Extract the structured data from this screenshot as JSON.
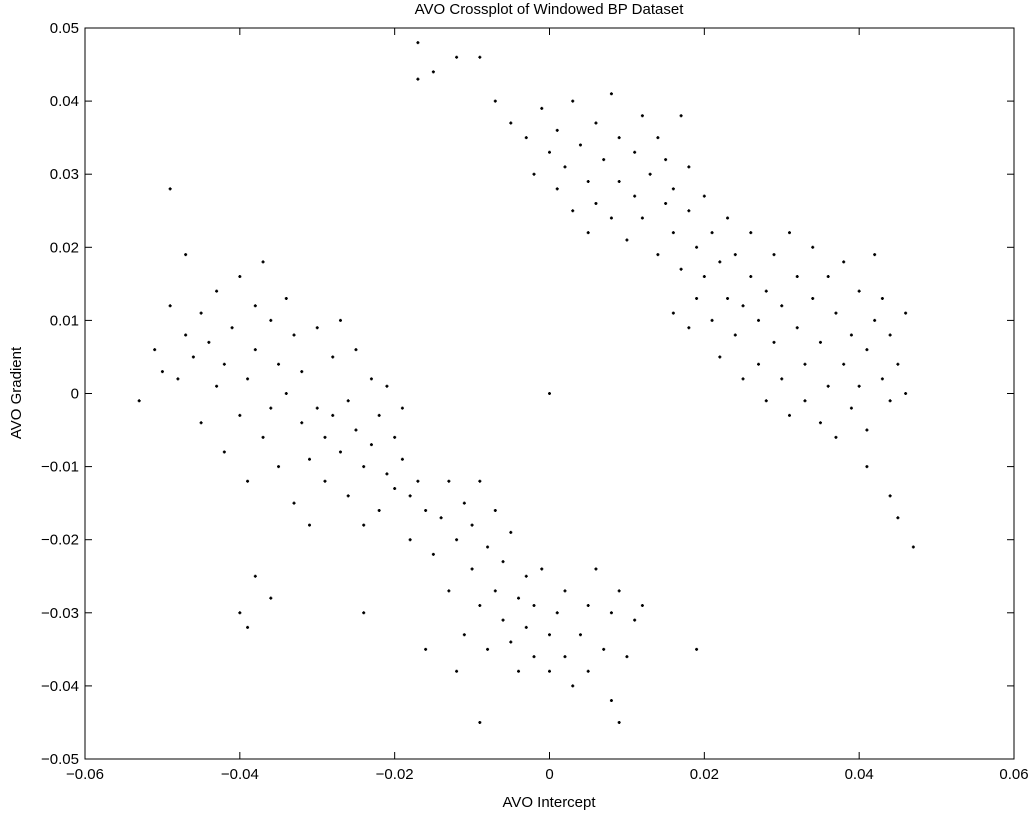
{
  "chart_data": {
    "type": "scatter",
    "title": "AVO Crossplot of Windowed BP Dataset",
    "xlabel": "AVO Intercept",
    "ylabel": "AVO Gradient",
    "xlim": [
      -0.06,
      0.06
    ],
    "ylim": [
      -0.05,
      0.05
    ],
    "xticks": [
      -0.06,
      -0.04,
      -0.02,
      0,
      0.02,
      0.04,
      0.06
    ],
    "xtick_labels": [
      "−0.06",
      "−0.04",
      "−0.02",
      "0",
      "0.02",
      "0.04",
      "0.06"
    ],
    "yticks": [
      0.05,
      0.04,
      0.03,
      0.02,
      0.01,
      0,
      -0.01,
      -0.02,
      -0.03,
      -0.04,
      -0.05
    ],
    "ytick_labels": [
      "0.05",
      "0.04",
      "0.03",
      "0.02",
      "0.01",
      "0",
      "−0.01",
      "−0.02",
      "−0.03",
      "−0.04",
      "−0.05"
    ],
    "grid": false,
    "marker_color": "#000000",
    "points": [
      [
        -0.053,
        -0.001
      ],
      [
        -0.051,
        0.006
      ],
      [
        -0.05,
        0.003
      ],
      [
        -0.049,
        0.012
      ],
      [
        -0.048,
        0.002
      ],
      [
        -0.047,
        0.008
      ],
      [
        -0.046,
        0.005
      ],
      [
        -0.045,
        0.011
      ],
      [
        -0.045,
        -0.004
      ],
      [
        -0.044,
        0.007
      ],
      [
        -0.043,
        0.001
      ],
      [
        -0.043,
        0.014
      ],
      [
        -0.042,
        -0.008
      ],
      [
        -0.042,
        0.004
      ],
      [
        -0.041,
        0.009
      ],
      [
        -0.04,
        -0.003
      ],
      [
        -0.04,
        0.016
      ],
      [
        -0.039,
        0.002
      ],
      [
        -0.039,
        -0.012
      ],
      [
        -0.038,
        0.012
      ],
      [
        -0.038,
        0.006
      ],
      [
        -0.037,
        -0.006
      ],
      [
        -0.037,
        0.018
      ],
      [
        -0.036,
        0.01
      ],
      [
        -0.036,
        -0.002
      ],
      [
        -0.035,
        0.004
      ],
      [
        -0.035,
        -0.01
      ],
      [
        -0.034,
        0.013
      ],
      [
        -0.034,
        0.0
      ],
      [
        -0.033,
        -0.015
      ],
      [
        -0.033,
        0.008
      ],
      [
        -0.032,
        -0.004
      ],
      [
        -0.032,
        0.003
      ],
      [
        -0.031,
        -0.009
      ],
      [
        -0.031,
        -0.018
      ],
      [
        -0.03,
        0.009
      ],
      [
        -0.03,
        -0.002
      ],
      [
        -0.029,
        -0.006
      ],
      [
        -0.029,
        -0.012
      ],
      [
        -0.028,
        0.005
      ],
      [
        -0.028,
        -0.003
      ],
      [
        -0.027,
        -0.008
      ],
      [
        -0.027,
        0.01
      ],
      [
        -0.026,
        -0.014
      ],
      [
        -0.026,
        -0.001
      ],
      [
        -0.025,
        -0.005
      ],
      [
        -0.025,
        0.006
      ],
      [
        -0.024,
        -0.01
      ],
      [
        -0.024,
        -0.018
      ],
      [
        -0.023,
        0.002
      ],
      [
        -0.023,
        -0.007
      ],
      [
        -0.022,
        -0.003
      ],
      [
        -0.022,
        -0.016
      ],
      [
        -0.021,
        -0.011
      ],
      [
        -0.021,
        0.001
      ],
      [
        -0.02,
        -0.006
      ],
      [
        -0.02,
        -0.013
      ],
      [
        -0.019,
        -0.002
      ],
      [
        -0.019,
        -0.009
      ],
      [
        -0.018,
        -0.014
      ],
      [
        -0.018,
        -0.02
      ],
      [
        -0.017,
        -0.012
      ],
      [
        -0.016,
        -0.016
      ],
      [
        -0.015,
        -0.022
      ],
      [
        -0.014,
        -0.017
      ],
      [
        -0.013,
        -0.012
      ],
      [
        -0.013,
        -0.027
      ],
      [
        -0.012,
        -0.02
      ],
      [
        -0.011,
        -0.015
      ],
      [
        -0.011,
        -0.033
      ],
      [
        -0.01,
        -0.024
      ],
      [
        -0.01,
        -0.018
      ],
      [
        -0.009,
        -0.029
      ],
      [
        -0.009,
        -0.012
      ],
      [
        -0.008,
        -0.021
      ],
      [
        -0.008,
        -0.035
      ],
      [
        -0.007,
        -0.027
      ],
      [
        -0.007,
        -0.016
      ],
      [
        -0.006,
        -0.031
      ],
      [
        -0.006,
        -0.023
      ],
      [
        -0.005,
        -0.019
      ],
      [
        -0.005,
        -0.034
      ],
      [
        -0.004,
        -0.028
      ],
      [
        -0.004,
        -0.038
      ],
      [
        -0.003,
        -0.025
      ],
      [
        -0.003,
        -0.032
      ],
      [
        -0.002,
        -0.036
      ],
      [
        -0.002,
        -0.029
      ],
      [
        -0.001,
        -0.024
      ],
      [
        0.0,
        -0.033
      ],
      [
        0.0,
        -0.038
      ],
      [
        0.001,
        -0.03
      ],
      [
        0.002,
        -0.036
      ],
      [
        0.002,
        -0.027
      ],
      [
        0.003,
        -0.04
      ],
      [
        0.004,
        -0.033
      ],
      [
        0.005,
        -0.029
      ],
      [
        0.005,
        -0.038
      ],
      [
        0.006,
        -0.024
      ],
      [
        0.007,
        -0.035
      ],
      [
        0.008,
        -0.03
      ],
      [
        0.008,
        -0.042
      ],
      [
        0.009,
        -0.027
      ],
      [
        0.01,
        -0.036
      ],
      [
        0.011,
        -0.031
      ],
      [
        0.012,
        -0.029
      ],
      [
        0.009,
        -0.045
      ],
      [
        -0.009,
        -0.045
      ],
      [
        -0.012,
        -0.038
      ],
      [
        -0.016,
        -0.035
      ],
      [
        -0.038,
        -0.025
      ],
      [
        -0.04,
        -0.03
      ],
      [
        -0.036,
        -0.028
      ],
      [
        -0.039,
        -0.032
      ],
      [
        0.019,
        -0.035
      ],
      [
        -0.024,
        -0.03
      ],
      [
        -0.017,
        0.048
      ],
      [
        -0.015,
        0.044
      ],
      [
        -0.012,
        0.046
      ],
      [
        -0.009,
        0.046
      ],
      [
        -0.017,
        0.043
      ],
      [
        -0.007,
        0.04
      ],
      [
        -0.005,
        0.037
      ],
      [
        -0.003,
        0.035
      ],
      [
        -0.002,
        0.03
      ],
      [
        -0.001,
        0.039
      ],
      [
        0.0,
        0.033
      ],
      [
        0.001,
        0.028
      ],
      [
        0.001,
        0.036
      ],
      [
        0.002,
        0.031
      ],
      [
        0.003,
        0.025
      ],
      [
        0.003,
        0.04
      ],
      [
        0.004,
        0.034
      ],
      [
        0.005,
        0.029
      ],
      [
        0.005,
        0.022
      ],
      [
        0.006,
        0.037
      ],
      [
        0.006,
        0.026
      ],
      [
        0.007,
        0.032
      ],
      [
        0.008,
        0.024
      ],
      [
        0.008,
        0.041
      ],
      [
        0.009,
        0.029
      ],
      [
        0.009,
        0.035
      ],
      [
        0.01,
        0.021
      ],
      [
        0.011,
        0.027
      ],
      [
        0.011,
        0.033
      ],
      [
        0.012,
        0.038
      ],
      [
        0.012,
        0.024
      ],
      [
        0.013,
        0.03
      ],
      [
        0.014,
        0.019
      ],
      [
        0.014,
        0.035
      ],
      [
        0.015,
        0.026
      ],
      [
        0.015,
        0.032
      ],
      [
        0.016,
        0.022
      ],
      [
        0.016,
        0.028
      ],
      [
        0.017,
        0.038
      ],
      [
        0.017,
        0.017
      ],
      [
        0.018,
        0.025
      ],
      [
        0.018,
        0.031
      ],
      [
        0.019,
        0.02
      ],
      [
        0.019,
        0.013
      ],
      [
        0.02,
        0.027
      ],
      [
        0.02,
        0.016
      ],
      [
        0.021,
        0.01
      ],
      [
        0.021,
        0.022
      ],
      [
        0.022,
        0.018
      ],
      [
        0.022,
        0.005
      ],
      [
        0.023,
        0.013
      ],
      [
        0.023,
        0.024
      ],
      [
        0.024,
        0.008
      ],
      [
        0.024,
        0.019
      ],
      [
        0.025,
        0.012
      ],
      [
        0.025,
        0.002
      ],
      [
        0.026,
        0.016
      ],
      [
        0.026,
        0.022
      ],
      [
        0.027,
        0.01
      ],
      [
        0.027,
        0.004
      ],
      [
        0.028,
        0.014
      ],
      [
        0.028,
        -0.001
      ],
      [
        0.029,
        0.019
      ],
      [
        0.029,
        0.007
      ],
      [
        0.03,
        0.012
      ],
      [
        0.03,
        0.002
      ],
      [
        0.031,
        0.022
      ],
      [
        0.031,
        -0.003
      ],
      [
        0.032,
        0.009
      ],
      [
        0.032,
        0.016
      ],
      [
        0.033,
        0.004
      ],
      [
        0.033,
        -0.001
      ],
      [
        0.034,
        0.013
      ],
      [
        0.034,
        0.02
      ],
      [
        0.035,
        0.007
      ],
      [
        0.035,
        -0.004
      ],
      [
        0.036,
        0.016
      ],
      [
        0.036,
        0.001
      ],
      [
        0.037,
        0.011
      ],
      [
        0.037,
        -0.006
      ],
      [
        0.038,
        0.004
      ],
      [
        0.038,
        0.018
      ],
      [
        0.039,
        0.008
      ],
      [
        0.039,
        -0.002
      ],
      [
        0.04,
        0.014
      ],
      [
        0.04,
        0.001
      ],
      [
        0.041,
        0.006
      ],
      [
        0.041,
        -0.005
      ],
      [
        0.042,
        0.019
      ],
      [
        0.042,
        0.01
      ],
      [
        0.043,
        0.002
      ],
      [
        0.043,
        0.013
      ],
      [
        0.044,
        0.008
      ],
      [
        0.044,
        -0.001
      ],
      [
        0.045,
        0.004
      ],
      [
        0.046,
        0.011
      ],
      [
        0.046,
        0.0
      ],
      [
        0.047,
        -0.021
      ],
      [
        0.045,
        -0.017
      ],
      [
        0.041,
        -0.01
      ],
      [
        0.044,
        -0.014
      ],
      [
        0.018,
        0.009
      ],
      [
        0.016,
        0.011
      ],
      [
        -0.049,
        0.028
      ],
      [
        -0.047,
        0.019
      ],
      [
        0.0,
        0.0
      ]
    ]
  }
}
